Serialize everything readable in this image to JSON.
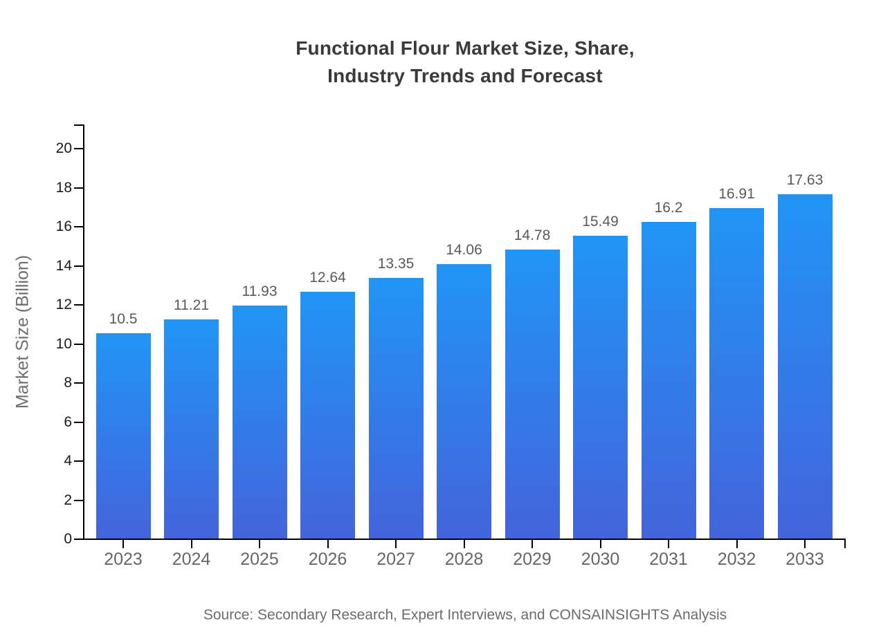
{
  "title": {
    "line1": "Functional Flour Market Size, Share,",
    "line2": "Industry Trends and Forecast"
  },
  "source": "Source: Secondary Research, Expert Interviews, and CONSAINSIGHTS Analysis",
  "chart_data": {
    "type": "bar",
    "title": "Functional Flour Market Size, Share, Industry Trends and Forecast",
    "categories": [
      "2023",
      "2024",
      "2025",
      "2026",
      "2027",
      "2028",
      "2029",
      "2030",
      "2031",
      "2032",
      "2033"
    ],
    "values": [
      10.5,
      11.21,
      11.93,
      12.64,
      13.35,
      14.06,
      14.78,
      15.49,
      16.2,
      16.91,
      17.63
    ],
    "xlabel": "",
    "ylabel": "Market Size (Billion)",
    "ylim": [
      0,
      20
    ],
    "yticks": [
      0,
      2,
      4,
      6,
      8,
      10,
      12,
      14,
      16,
      18,
      20
    ],
    "grid": false,
    "legend": false,
    "data_labels_shown": true,
    "colors": {
      "bar_gradient_top": "#2195F6",
      "bar_gradient_bottom": "#4464DB",
      "axis": "#000000",
      "y_tick_label": "#1a1a1a",
      "x_tick_label": "#666666",
      "value_label": "#595959",
      "axis_title": "#6e6e6e",
      "title": "#3a3a3a",
      "source": "#6b6b6b"
    }
  }
}
